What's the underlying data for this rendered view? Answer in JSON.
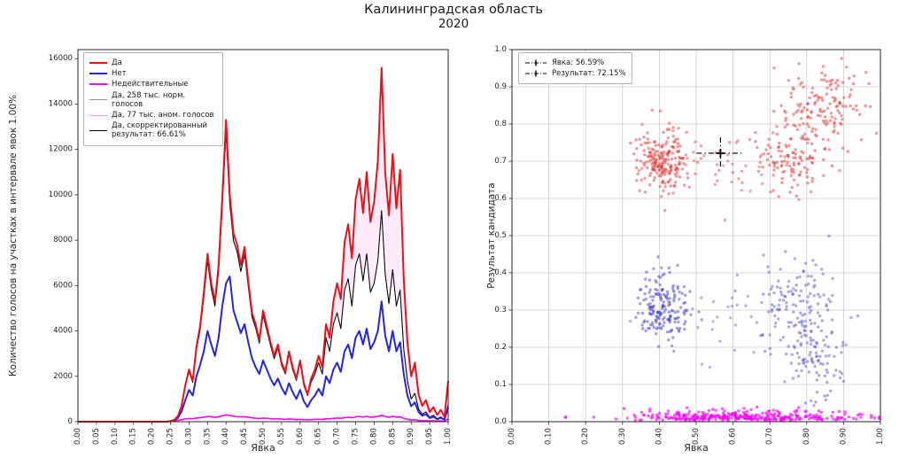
{
  "title": {
    "line1": "Калининградская область",
    "line2": "2020"
  },
  "chart_data": [
    {
      "type": "line",
      "name": "votes-by-turnout-histogram",
      "xlabel": "Явка",
      "ylabel": "Количество голосов на участках в интервале явок 1.00%",
      "xlim": [
        0,
        1
      ],
      "ylim": [
        0,
        16400
      ],
      "grid": false,
      "legend_position": "upper-left",
      "x_start": 0,
      "x_step": 0.01,
      "xticks": [
        "0.00",
        "0.05",
        "0.10",
        "0.15",
        "0.20",
        "0.25",
        "0.30",
        "0.35",
        "0.40",
        "0.45",
        "0.50",
        "0.55",
        "0.60",
        "0.65",
        "0.70",
        "0.75",
        "0.80",
        "0.85",
        "0.90",
        "0.95",
        "1.00"
      ],
      "yticks": [
        "0",
        "2000",
        "4000",
        "6000",
        "8000",
        "10000",
        "12000",
        "14000",
        "16000"
      ],
      "series": [
        {
          "name": "Да",
          "color": "#e8121a",
          "lw": 2,
          "legend_lw": 2.5,
          "values": [
            0,
            0,
            0,
            0,
            0,
            0,
            0,
            0,
            0,
            0,
            0,
            0,
            0,
            0,
            0,
            0,
            0,
            0,
            0,
            0,
            0,
            0,
            0,
            0,
            0,
            30,
            80,
            250,
            700,
            1600,
            2300,
            1800,
            3300,
            4200,
            5700,
            7400,
            6100,
            5300,
            6900,
            9900,
            13300,
            10000,
            8300,
            7800,
            6900,
            7700,
            6200,
            4800,
            4300,
            3600,
            4900,
            4200,
            3500,
            2900,
            3400,
            2600,
            2200,
            3100,
            2400,
            1900,
            2700,
            1700,
            1200,
            1900,
            2300,
            2900,
            2400,
            4300,
            3700,
            5300,
            6100,
            5400,
            7900,
            8700,
            7200,
            9800,
            10700,
            9200,
            11000,
            8800,
            9700,
            11500,
            15600,
            11000,
            9100,
            11800,
            9400,
            11100,
            6300,
            3500,
            2000,
            2600,
            1200,
            700,
            950,
            420,
            640,
            300,
            520,
            210,
            1800
          ]
        },
        {
          "name": "Нет",
          "color": "#2525d8",
          "lw": 2,
          "legend_lw": 2.5,
          "values": [
            0,
            0,
            0,
            0,
            0,
            0,
            0,
            0,
            0,
            0,
            0,
            0,
            0,
            0,
            0,
            0,
            0,
            0,
            0,
            0,
            0,
            0,
            0,
            0,
            0,
            20,
            60,
            170,
            450,
            950,
            1400,
            1150,
            2000,
            2500,
            3100,
            4000,
            3400,
            2900,
            3700,
            5100,
            6100,
            6400,
            4900,
            4400,
            3900,
            4300,
            3500,
            2800,
            2400,
            2100,
            2700,
            2300,
            1900,
            1600,
            1900,
            1500,
            1200,
            1700,
            1300,
            1000,
            1400,
            900,
            650,
            950,
            1150,
            1450,
            1150,
            2000,
            1700,
            2300,
            2600,
            2200,
            3100,
            3400,
            2800,
            3700,
            4000,
            3400,
            4100,
            3200,
            3500,
            4000,
            5300,
            3800,
            3100,
            4000,
            3100,
            3500,
            2100,
            1150,
            680,
            850,
            420,
            260,
            330,
            160,
            220,
            110,
            170,
            90,
            620
          ]
        },
        {
          "name": "Недействительные",
          "color": "#ff00ff",
          "lw": 1.6,
          "legend_lw": 2.5,
          "values": [
            0,
            0,
            0,
            0,
            0,
            0,
            0,
            0,
            0,
            0,
            0,
            0,
            0,
            0,
            0,
            0,
            0,
            0,
            0,
            0,
            0,
            0,
            0,
            0,
            0,
            20,
            40,
            60,
            90,
            120,
            140,
            130,
            160,
            180,
            200,
            230,
            210,
            190,
            220,
            260,
            300,
            270,
            240,
            220,
            210,
            220,
            200,
            170,
            150,
            140,
            160,
            150,
            130,
            120,
            130,
            110,
            100,
            120,
            110,
            90,
            100,
            90,
            80,
            90,
            100,
            110,
            100,
            130,
            120,
            150,
            160,
            150,
            180,
            200,
            170,
            210,
            230,
            200,
            240,
            190,
            210,
            230,
            280,
            230,
            190,
            240,
            200,
            220,
            150,
            100,
            70,
            90,
            50,
            40,
            50,
            30,
            40,
            25,
            35,
            20,
            120
          ]
        },
        {
          "name": "Да, 258 тыс. норм. голосов",
          "color": "#8f86b8",
          "lw": 0.9,
          "legend_lw": 1,
          "values": [
            0,
            0,
            0,
            0,
            0,
            0,
            0,
            0,
            0,
            0,
            0,
            0,
            0,
            0,
            0,
            0,
            0,
            0,
            0,
            0,
            0,
            0,
            0,
            0,
            0,
            30,
            80,
            250,
            700,
            1600,
            2210,
            1730,
            3170,
            4030,
            5470,
            7100,
            5860,
            5090,
            6620,
            9500,
            12770,
            9600,
            7970,
            7490,
            6620,
            7390,
            5950,
            4610,
            4130,
            3460,
            4700,
            4030,
            3360,
            2780,
            3260,
            2500,
            2110,
            2980,
            2300,
            1820,
            2590,
            1600,
            1150,
            1750,
            2100,
            2600,
            2100,
            3700,
            3100,
            4300,
            4800,
            4100,
            5800,
            6300,
            5100,
            6900,
            7400,
            6200,
            7400,
            5700,
            6100,
            7100,
            9300,
            6500,
            5200,
            6700,
            5100,
            5800,
            3200,
            1800,
            1000,
            1250,
            560,
            330,
            430,
            190,
            280,
            130,
            210,
            90,
            750
          ]
        },
        {
          "name": "Да, 77 тыс. аном. голосов",
          "color": "#ff9cf0",
          "lw": 0.8,
          "legend_lw": 1,
          "fill": "#ffd8f6",
          "fill_between": [
            3,
            0
          ],
          "values": null
        },
        {
          "name": "Да, скорректированный результат: 66.61%",
          "color": "#000000",
          "lw": 1,
          "legend_lw": 1.5,
          "same_as": 3,
          "values": null
        }
      ]
    },
    {
      "type": "scatter",
      "name": "result-vs-turnout-scatter",
      "xlabel": "Явка",
      "ylabel": "Результат кандидата",
      "xlim": [
        0,
        1
      ],
      "ylim": [
        0,
        1
      ],
      "grid": true,
      "legend_position": "upper-left",
      "xticks": [
        "0.00",
        "0.10",
        "0.20",
        "0.30",
        "0.40",
        "0.50",
        "0.60",
        "0.70",
        "0.80",
        "0.90",
        "1.00"
      ],
      "yticks": [
        "0.0",
        "0.1",
        "0.2",
        "0.3",
        "0.4",
        "0.5",
        "0.6",
        "0.7",
        "0.8",
        "0.9",
        "1.0"
      ],
      "legend": [
        {
          "label": "Явка: 56.59%"
        },
        {
          "label": "Результат: 72.15%"
        }
      ],
      "marker": {
        "x": 0.5659,
        "y": 0.7215,
        "turnout_label": "Явка: 56.59%",
        "result_label": "Результат: 72.15%"
      },
      "seed": 7,
      "clusters": [
        {
          "name": "yes-low-turnout",
          "color": "#e03535",
          "alpha": 0.5,
          "count": 210,
          "cx": 0.41,
          "cy": 0.7,
          "sx": 0.034,
          "sy": 0.042
        },
        {
          "name": "yes-high-turnout-a",
          "color": "#e03535",
          "alpha": 0.5,
          "count": 120,
          "cx": 0.76,
          "cy": 0.71,
          "sx": 0.045,
          "sy": 0.05
        },
        {
          "name": "yes-high-turnout-b",
          "color": "#e03535",
          "alpha": 0.5,
          "count": 140,
          "cx": 0.84,
          "cy": 0.85,
          "sx": 0.05,
          "sy": 0.055
        },
        {
          "name": "yes-mid-turnout",
          "color": "#e03535",
          "alpha": 0.45,
          "count": 40,
          "cx": 0.57,
          "cy": 0.7,
          "sx": 0.08,
          "sy": 0.05
        },
        {
          "name": "no-low-turnout",
          "color": "#4444cc",
          "alpha": 0.5,
          "count": 180,
          "cx": 0.41,
          "cy": 0.315,
          "sx": 0.034,
          "sy": 0.045
        },
        {
          "name": "no-high-turnout-a",
          "color": "#4444cc",
          "alpha": 0.45,
          "count": 110,
          "cx": 0.77,
          "cy": 0.33,
          "sx": 0.05,
          "sy": 0.05
        },
        {
          "name": "no-high-turnout-b",
          "color": "#4444cc",
          "alpha": 0.45,
          "count": 110,
          "cx": 0.83,
          "cy": 0.18,
          "sx": 0.05,
          "sy": 0.06
        },
        {
          "name": "no-mid-turnout",
          "color": "#4444cc",
          "alpha": 0.4,
          "count": 30,
          "cx": 0.57,
          "cy": 0.3,
          "sx": 0.08,
          "sy": 0.05
        },
        {
          "name": "invalid",
          "color": "#ff00ff",
          "alpha": 0.65,
          "count": 340,
          "cx": 0.62,
          "cy": 0.004,
          "sx": 0.16,
          "sy": 0.012,
          "half_y": true
        }
      ]
    }
  ]
}
